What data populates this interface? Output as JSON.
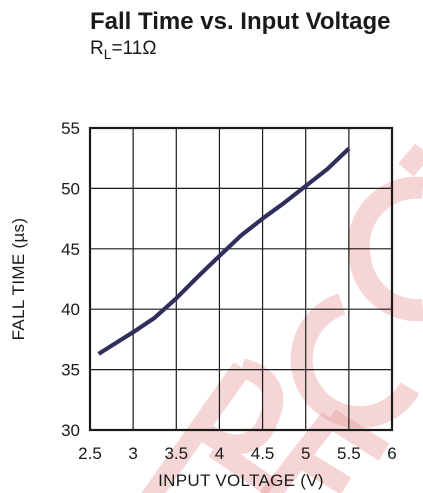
{
  "chart_data": {
    "type": "line",
    "title": "Fall Time vs. Input Voltage",
    "subtitle": {
      "prefix": "R",
      "subscript": "L",
      "suffix": "=11Ω"
    },
    "xlabel": "INPUT VOLTAGE (V)",
    "ylabel": "FALL TIME (µs)",
    "xlim": [
      2.5,
      6
    ],
    "ylim": [
      30,
      55
    ],
    "xticks": [
      "2.5",
      "3",
      "3.5",
      "4",
      "4.5",
      "5",
      "5.5",
      "6"
    ],
    "yticks": [
      "30",
      "35",
      "40",
      "45",
      "50",
      "55"
    ],
    "grid": true,
    "series": [
      {
        "color": "#2f2f5c",
        "x": [
          2.6,
          3.0,
          3.25,
          3.5,
          3.75,
          4.0,
          4.25,
          4.5,
          4.75,
          5.0,
          5.25,
          5.5
        ],
        "y": [
          36.3,
          38.1,
          39.3,
          40.9,
          42.7,
          44.4,
          46.1,
          47.5,
          48.8,
          50.2,
          51.6,
          53.3
        ]
      }
    ],
    "watermark": {
      "text": "RECO",
      "color": "#e89a9a"
    }
  }
}
